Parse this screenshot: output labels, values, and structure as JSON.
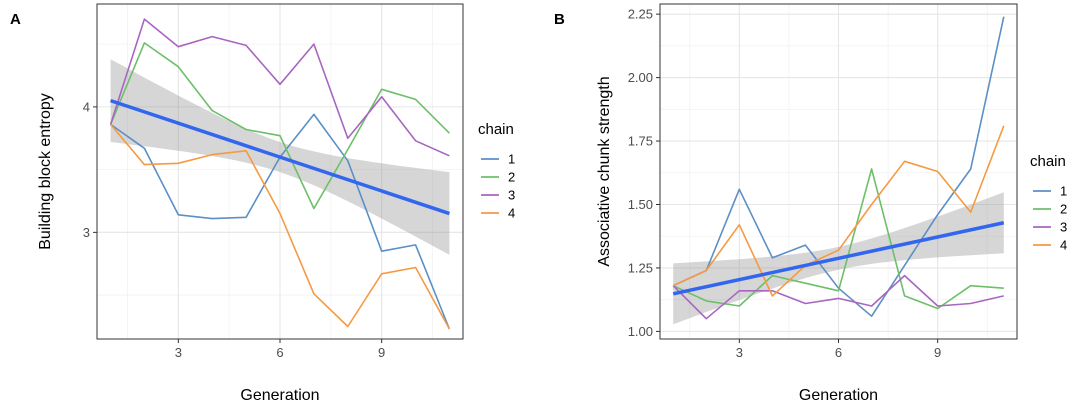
{
  "chart_data": [
    {
      "type": "line",
      "panel_label": "A",
      "xlabel": "Generation",
      "ylabel": "Building block entropy",
      "xlim": [
        0.6,
        11.4
      ],
      "ylim": [
        2.15,
        4.82
      ],
      "xticks": [
        3,
        6,
        9
      ],
      "yticks": [
        3,
        4
      ],
      "grid": true,
      "legend": {
        "title": "chain",
        "placement": "right"
      },
      "x": [
        1,
        2,
        3,
        4,
        5,
        6,
        7,
        8,
        9,
        10,
        11
      ],
      "series": [
        {
          "name": "1",
          "color": "#5b8fc7",
          "values": [
            3.86,
            3.67,
            3.14,
            3.11,
            3.12,
            3.6,
            3.94,
            3.57,
            2.85,
            2.9,
            2.23
          ]
        },
        {
          "name": "2",
          "color": "#6dbf6a",
          "values": [
            3.86,
            4.51,
            4.32,
            3.97,
            3.82,
            3.77,
            3.19,
            3.66,
            4.14,
            4.06,
            3.79
          ]
        },
        {
          "name": "3",
          "color": "#a865c1",
          "values": [
            3.86,
            4.7,
            4.48,
            4.56,
            4.49,
            4.18,
            4.5,
            3.75,
            4.08,
            3.73,
            3.61
          ]
        },
        {
          "name": "4",
          "color": "#f59a43",
          "values": [
            3.86,
            3.54,
            3.55,
            3.62,
            3.65,
            3.15,
            2.51,
            2.25,
            2.67,
            2.72,
            2.23
          ]
        }
      ],
      "trend": {
        "label": "linear fit",
        "color": "#3366ee",
        "intercept": 4.14,
        "slope": -0.09,
        "band_halfwidth_ends": 0.33,
        "band_halfwidth_mid": 0.12
      }
    },
    {
      "type": "line",
      "panel_label": "B",
      "xlabel": "Generation",
      "ylabel": "Associative chunk strength",
      "xlim": [
        0.6,
        11.4
      ],
      "ylim": [
        0.97,
        2.29
      ],
      "xticks": [
        3,
        6,
        9
      ],
      "yticks": [
        1.0,
        1.25,
        1.5,
        1.75,
        2.0,
        2.25
      ],
      "ytick_labels": [
        "1.00",
        "1.25",
        "1.50",
        "1.75",
        "2.00",
        "2.25"
      ],
      "grid": true,
      "legend": {
        "title": "chain",
        "placement": "right"
      },
      "x": [
        1,
        2,
        3,
        4,
        5,
        6,
        7,
        8,
        9,
        10,
        11
      ],
      "series": [
        {
          "name": "1",
          "color": "#5b8fc7",
          "values": [
            1.18,
            1.24,
            1.56,
            1.29,
            1.34,
            1.17,
            1.06,
            1.26,
            1.46,
            1.64,
            2.24
          ]
        },
        {
          "name": "2",
          "color": "#6dbf6a",
          "values": [
            1.18,
            1.12,
            1.1,
            1.22,
            1.19,
            1.16,
            1.64,
            1.14,
            1.09,
            1.18,
            1.17
          ]
        },
        {
          "name": "3",
          "color": "#a865c1",
          "values": [
            1.18,
            1.05,
            1.16,
            1.16,
            1.11,
            1.13,
            1.1,
            1.22,
            1.1,
            1.11,
            1.14
          ]
        },
        {
          "name": "4",
          "color": "#f59a43",
          "values": [
            1.18,
            1.24,
            1.42,
            1.14,
            1.26,
            1.32,
            1.5,
            1.67,
            1.63,
            1.47,
            1.81
          ]
        }
      ],
      "trend": {
        "label": "linear fit",
        "color": "#3366ee",
        "intercept": 1.12,
        "slope": 0.028,
        "band_halfwidth_ends": 0.12,
        "band_halfwidth_mid": 0.045
      }
    }
  ]
}
